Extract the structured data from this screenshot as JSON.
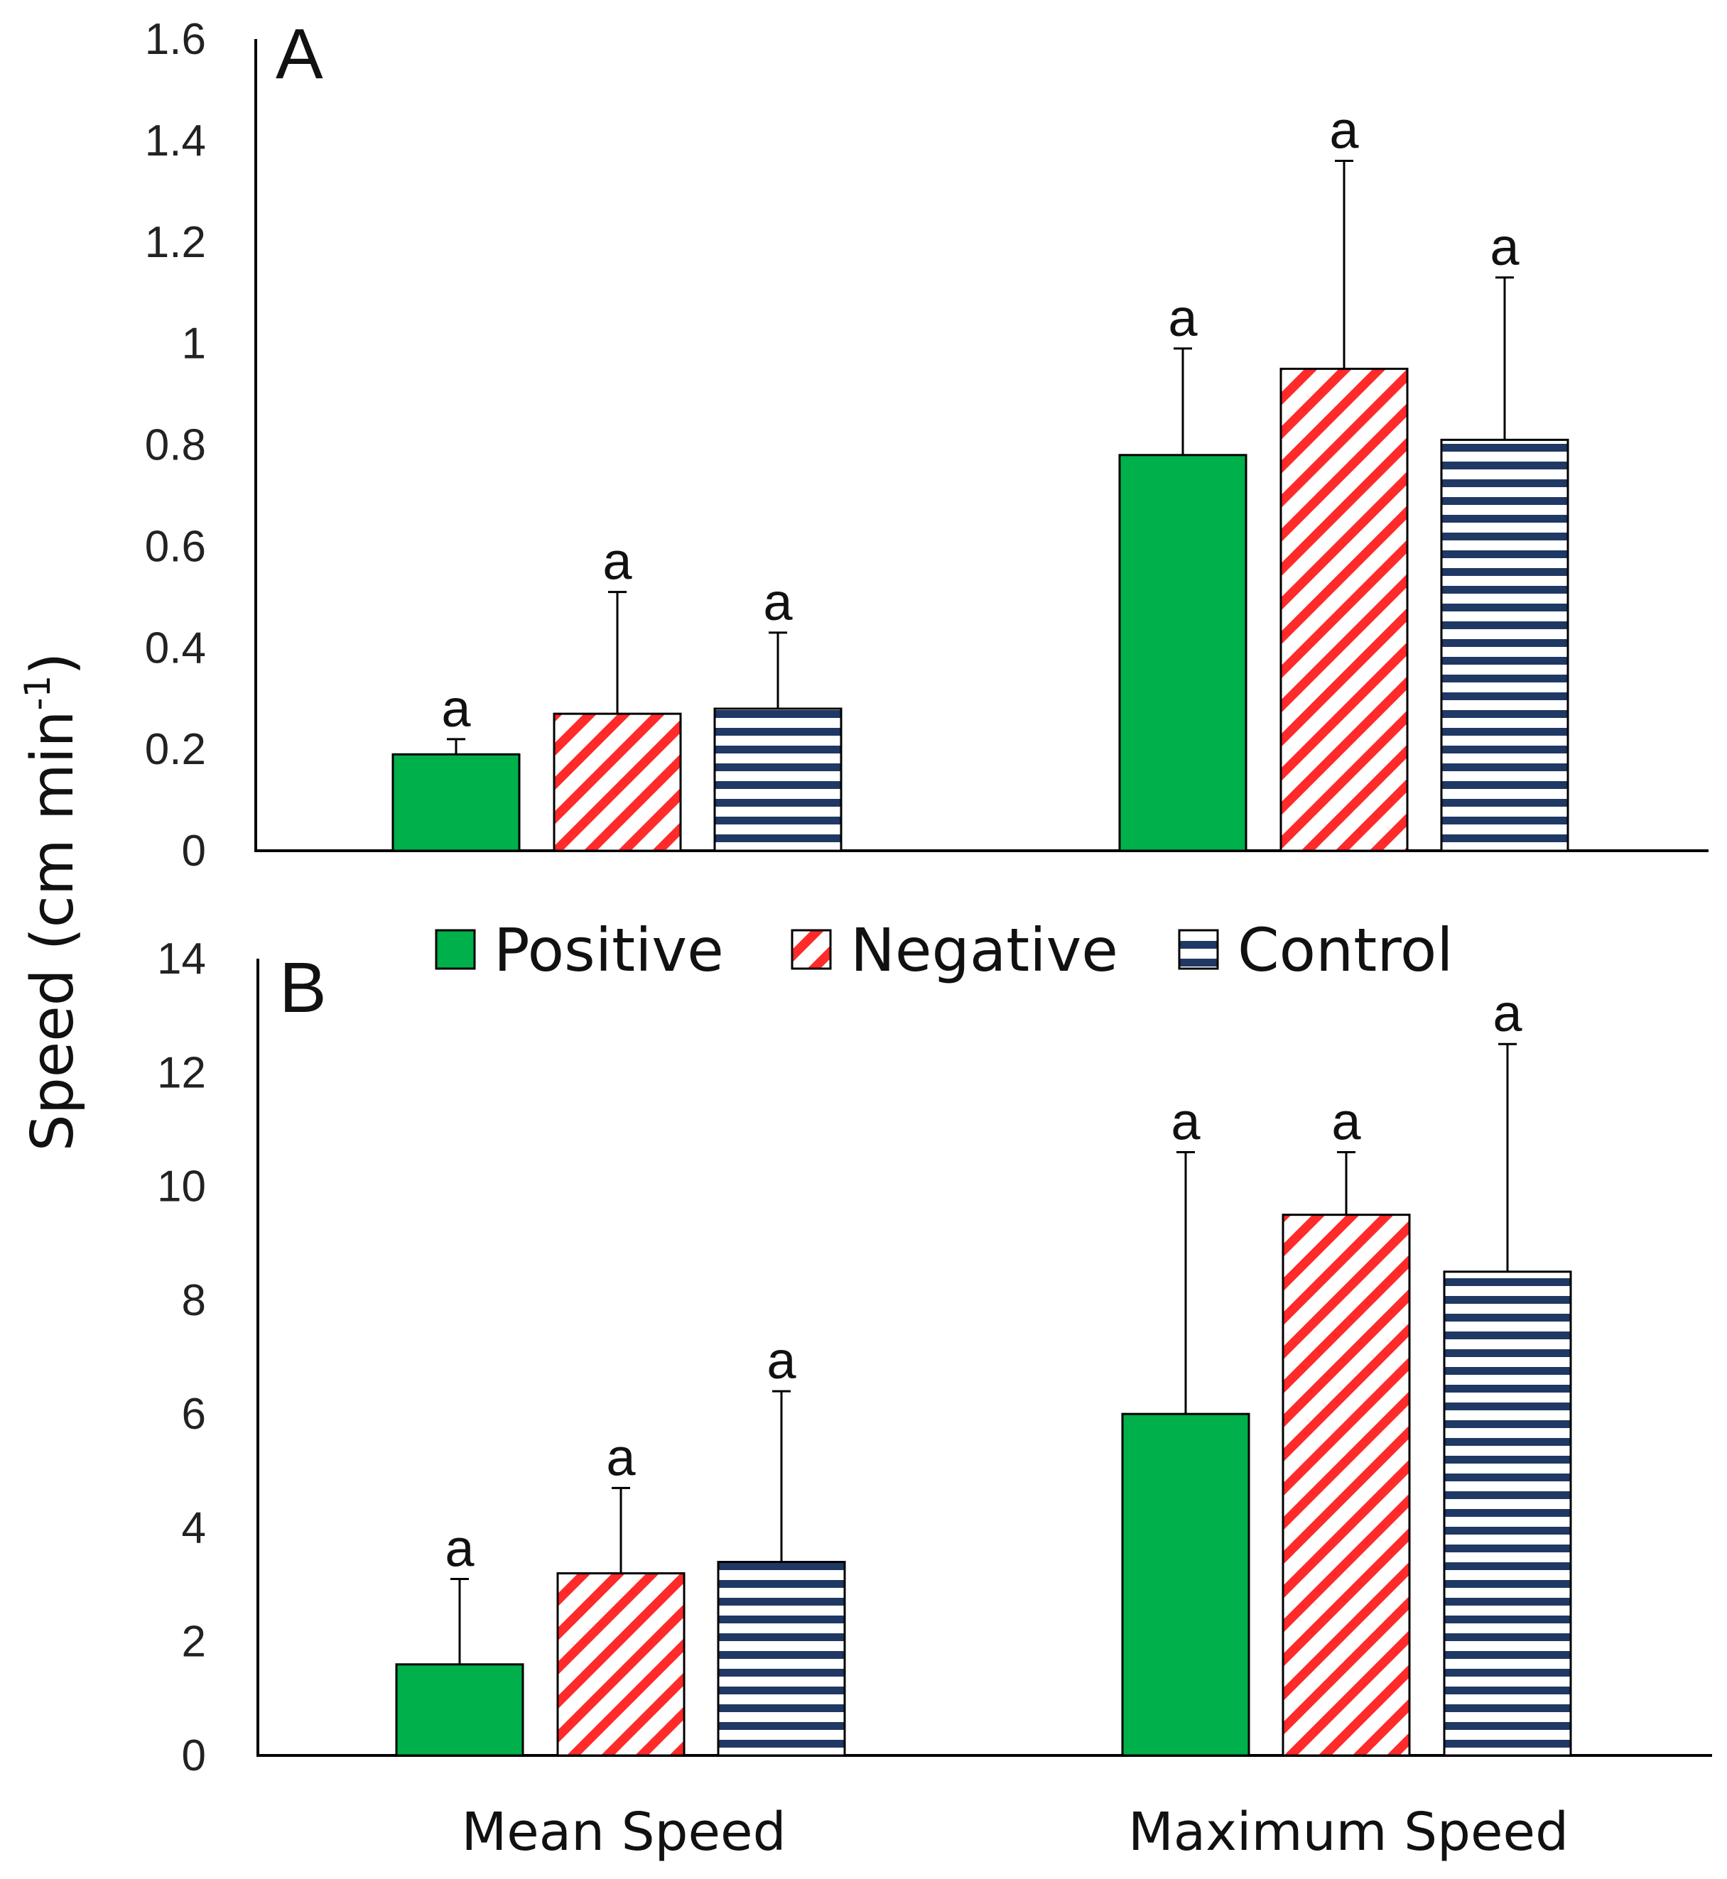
{
  "chart_data": [
    {
      "type": "bar",
      "panel": "A",
      "categories": [
        "Mean Speed",
        "Maximum Speed"
      ],
      "ylim": [
        0,
        1.6
      ],
      "yticks": [
        "0",
        "0.2",
        "0.4",
        "0.6",
        "0.8",
        "1",
        "1.2",
        "1.4",
        "1.6"
      ],
      "ytick_values": [
        0,
        0.2,
        0.4,
        0.6,
        0.8,
        1.0,
        1.2,
        1.4,
        1.6
      ],
      "series": [
        {
          "name": "Positive",
          "values": [
            0.19,
            0.78
          ],
          "errors": [
            0.03,
            0.21
          ],
          "labels": [
            "a",
            "a"
          ]
        },
        {
          "name": "Negative",
          "values": [
            0.27,
            0.95
          ],
          "errors": [
            0.24,
            0.41
          ],
          "labels": [
            "a",
            "a"
          ]
        },
        {
          "name": "Control",
          "values": [
            0.28,
            0.81
          ],
          "errors": [
            0.15,
            0.32
          ],
          "labels": [
            "a",
            "a"
          ]
        }
      ]
    },
    {
      "type": "bar",
      "panel": "B",
      "categories": [
        "Mean Speed",
        "Maximum Speed"
      ],
      "ylim": [
        0,
        14
      ],
      "yticks": [
        "0",
        "2",
        "4",
        "6",
        "8",
        "10",
        "12",
        "14"
      ],
      "ytick_values": [
        0,
        2,
        4,
        6,
        8,
        10,
        12,
        14
      ],
      "series": [
        {
          "name": "Positive",
          "values": [
            1.6,
            6.0
          ],
          "errors": [
            1.5,
            4.6
          ],
          "labels": [
            "a",
            "a"
          ]
        },
        {
          "name": "Negative",
          "values": [
            3.2,
            9.5
          ],
          "errors": [
            1.5,
            1.1
          ],
          "labels": [
            "a",
            "a"
          ]
        },
        {
          "name": "Control",
          "values": [
            3.4,
            8.5
          ],
          "errors": [
            3.0,
            4.0
          ],
          "labels": [
            "a",
            "a"
          ]
        }
      ]
    }
  ],
  "ylabel": {
    "main": "Speed (cm min",
    "sup": "-1",
    "close": ")"
  },
  "xlabels": [
    "Mean Speed",
    "Maximum Speed"
  ],
  "legend": {
    "position": "between-panels",
    "items": [
      {
        "name": "Positive",
        "pattern": "solid-green"
      },
      {
        "name": "Negative",
        "pattern": "red-diagonal-stripes"
      },
      {
        "name": "Control",
        "pattern": "navy-horizontal-stripes"
      }
    ]
  },
  "colors": {
    "positive": "#00b04a",
    "negative": "#ff2a2a",
    "control": "#1f3864",
    "axis": "#000000"
  }
}
